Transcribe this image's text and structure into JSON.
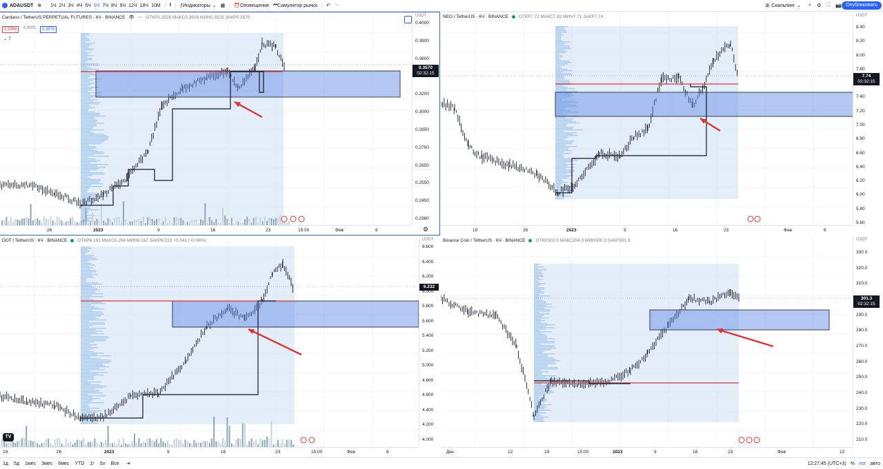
{
  "toolbar": {
    "symbol": "ADAUSDT",
    "intervals": [
      "1Ч",
      "2Ч",
      "3Ч",
      "4Ч",
      "5Ч",
      "6Ч",
      "7Ч",
      "8Ч",
      "9Ч",
      "12Ч",
      "18Ч",
      "10М"
    ],
    "active_interval": "6Ч",
    "indicators_label": "Индикаторы",
    "alerts_label": "Оповещения",
    "replay_label": "Симулятор рынка",
    "layout_label": "Скальпинг",
    "publish_label": "Опубликовать"
  },
  "panels": [
    {
      "title": "Cardano / TetherUS PERPETUAL FUTURES · 6Ч · BINANCE",
      "stats": "ОТКР0.3538 МАКС0.3609 МИН0.3525 ЗАКР0.3570",
      "bid": "0.3569",
      "spread": "0.0001",
      "ask": "0.3570",
      "indicator_count": "7",
      "scale_title": "USDT",
      "ticks": [
        "0.4000",
        "0.3800",
        "0.3600",
        "0.3400",
        "0.3200",
        "0.3000",
        "0.2850",
        "0.2750",
        "0.2650",
        "0.2550",
        "0.2450",
        "0.2360"
      ],
      "last_price": "0.3570",
      "countdown": "02:32:15",
      "time_labels": [
        "26",
        "2023",
        "9",
        "16",
        "23",
        "15:00",
        "Фев",
        "6"
      ]
    },
    {
      "title": "NEO / TetherUS · 6Ч · BINANCE",
      "stats": "ОТКР7.72 МАКС7.82 МИН7.71 ЗАКР7.74",
      "scale_title": "USDT",
      "ticks": [
        "8.40",
        "8.20",
        "8.00",
        "7.80",
        "7.60",
        "7.40",
        "7.20",
        "7.00",
        "6.80",
        "6.60",
        "6.40",
        "6.20",
        "6.00",
        "5.80",
        "5.60"
      ],
      "last_price": "7.74",
      "countdown": "02:32:15",
      "time_labels": [
        "19",
        "26",
        "2023",
        "9",
        "16",
        "23",
        "Фев",
        "6"
      ]
    },
    {
      "title": "DOT / TetherUS · 6Ч · BINANCE",
      "stats": "ОТКР6.191 МАКС6.294 МИН6.167 ЗАКР6.232 +0.041 (+0.66%)",
      "scale_title": "USDT",
      "ticks": [
        "6.600",
        "6.400",
        "6.200",
        "6.000",
        "5.800",
        "5.600",
        "5.400",
        "5.200",
        "5.000",
        "4.800",
        "4.600",
        "4.400",
        "4.200",
        "4.000"
      ],
      "last_price": "6.232",
      "time_labels": [
        "19",
        "26",
        "2023",
        "9",
        "16",
        "23",
        "15:00",
        "Фев",
        "6"
      ]
    },
    {
      "title": "Binance Coin / TetherUS · 6Ч · BINANCE",
      "stats": "ОТКР302.0 МАКС304.3 МИН300.3 ЗАКР301.3",
      "scale_title": "USDT",
      "ticks": [
        "330.0",
        "320.0",
        "310.0",
        "300.0",
        "290.0",
        "280.0",
        "270.0",
        "260.0",
        "250.0",
        "240.0",
        "230.0",
        "220.0",
        "210.0"
      ],
      "last_price": "301.3",
      "countdown": "02:32:15",
      "time_labels": [
        "Дек",
        "12",
        "19",
        "15:00",
        "2023",
        "9",
        "16",
        "23",
        "Фев",
        "13"
      ]
    }
  ],
  "bottombar": {
    "ranges": [
      "1д",
      "5д",
      "1мес",
      "3мес",
      "6мес",
      "YTD",
      "1г",
      "5л",
      "Все"
    ],
    "clock": "12:27:45 (UTC+3)",
    "percent": "%",
    "log": "лог",
    "auto": "авто"
  },
  "colors": {
    "accent": "#2962ff",
    "zone": "#5b85e6",
    "profile": "#cfe2f5",
    "poc": "#e03131",
    "up": "#131722"
  }
}
